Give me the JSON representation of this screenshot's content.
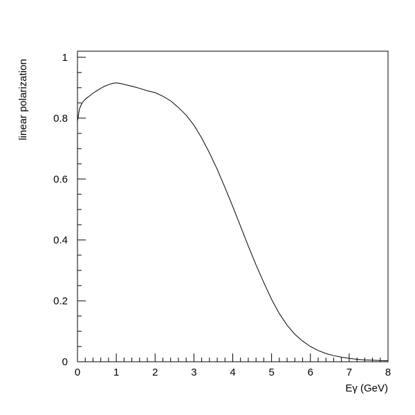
{
  "chart_data": {
    "type": "line",
    "title": "",
    "xlabel": "Eγ (GeV)",
    "ylabel": "linear polarization",
    "xlim": [
      0,
      8
    ],
    "ylim": [
      0,
      1.02
    ],
    "grid": false,
    "legend": "none",
    "x_ticks": [
      "0",
      "1",
      "2",
      "3",
      "4",
      "5",
      "6",
      "7",
      "8"
    ],
    "y_ticks": [
      "0",
      "0.2",
      "0.4",
      "0.6",
      "0.8",
      "1"
    ],
    "series": [
      {
        "x": [
          0.0,
          0.05,
          0.1,
          0.15,
          0.2,
          0.3,
          0.4,
          0.5,
          0.6,
          0.7,
          0.8,
          0.9,
          1.0,
          1.1,
          1.2,
          1.4,
          1.6,
          1.8,
          2.0,
          2.2,
          2.4,
          2.6,
          2.8,
          3.0,
          3.2,
          3.4,
          3.6,
          3.8,
          4.0,
          4.2,
          4.4,
          4.6,
          4.8,
          5.0,
          5.2,
          5.4,
          5.6,
          5.8,
          6.0,
          6.2,
          6.4,
          6.6,
          6.8,
          7.0,
          7.2,
          7.4,
          7.6,
          7.8,
          8.0
        ],
        "y": [
          0.79,
          0.83,
          0.845,
          0.855,
          0.862,
          0.872,
          0.882,
          0.89,
          0.898,
          0.905,
          0.91,
          0.914,
          0.916,
          0.914,
          0.911,
          0.905,
          0.898,
          0.89,
          0.884,
          0.872,
          0.857,
          0.835,
          0.81,
          0.777,
          0.735,
          0.686,
          0.632,
          0.572,
          0.51,
          0.445,
          0.38,
          0.318,
          0.26,
          0.205,
          0.158,
          0.12,
          0.09,
          0.068,
          0.05,
          0.037,
          0.027,
          0.02,
          0.015,
          0.011,
          0.008,
          0.006,
          0.005,
          0.004,
          0.003
        ]
      }
    ]
  }
}
